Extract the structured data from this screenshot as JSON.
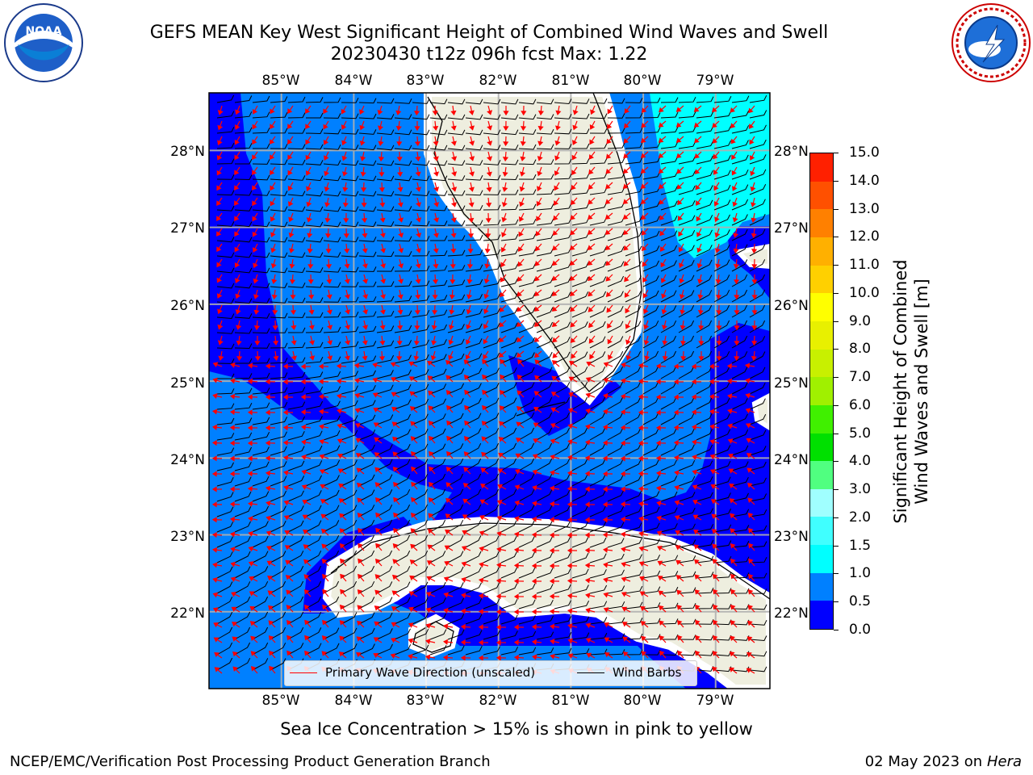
{
  "title_line1": "GEFS MEAN Key West Significant Height of Combined Wind Waves and Swell",
  "title_line2": "20230430 t12z 096h fcst   Max: 1.22",
  "logos": {
    "left": "noaa-logo",
    "right": "nws-logo"
  },
  "map": {
    "lon_ticks": [
      "85°W",
      "84°W",
      "83°W",
      "82°W",
      "81°W",
      "80°W",
      "79°W"
    ],
    "lat_ticks": [
      "28°N",
      "27°N",
      "26°N",
      "25°N",
      "24°N",
      "23°N",
      "22°N"
    ],
    "lon_range": [
      -86.0,
      -78.25
    ],
    "lat_range": [
      21.0,
      28.75
    ],
    "colors": {
      "land": "#eeeedf",
      "class_0_0_5": "#0000ff",
      "class_0_5_1_0": "#0080ff",
      "class_1_0_1_5": "#00ffff",
      "barb": "#000000",
      "wave_arrow": "#ff0000"
    }
  },
  "legend": {
    "wave": "Primary Wave Direction (unscaled)",
    "barbs": "Wind Barbs"
  },
  "colorbar": {
    "label_line1": "Significant Height of Combined",
    "label_line2": "Wind Waves and Swell [m]",
    "ticks": [
      "0.0",
      "0.5",
      "1.0",
      "1.5",
      "2.0",
      "3.0",
      "4.0",
      "5.0",
      "6.0",
      "7.0",
      "8.0",
      "9.0",
      "10.0",
      "11.0",
      "12.0",
      "13.0",
      "14.0",
      "15.0"
    ],
    "colors": [
      "#0000ff",
      "#0080ff",
      "#00ffff",
      "#40ffff",
      "#a0ffff",
      "#50ff80",
      "#00e000",
      "#40f000",
      "#a0f000",
      "#c8f000",
      "#e8f000",
      "#ffff00",
      "#ffd000",
      "#ffb000",
      "#ff8000",
      "#ff5000",
      "#ff2000"
    ]
  },
  "subtitle": "Sea Ice Concentration > 15% is shown in pink to yellow",
  "footer": {
    "left": "NCEP/EMC/Verification Post Processing Product Generation Branch",
    "date": "02 May 2023 on",
    "machine": "Hera"
  }
}
